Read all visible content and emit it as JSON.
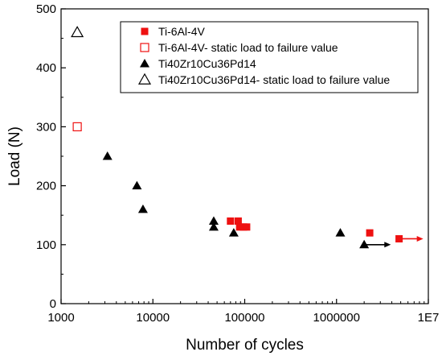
{
  "chart_data": {
    "type": "scatter",
    "title": "",
    "xlabel": "Number of cycles",
    "ylabel": "Load (N)",
    "x_scale": "log",
    "xlim": [
      1000,
      10000000
    ],
    "ylim": [
      0,
      500
    ],
    "x_ticks": [
      {
        "value": 1000,
        "label": "1000"
      },
      {
        "value": 10000,
        "label": "10000"
      },
      {
        "value": 100000,
        "label": "100000"
      },
      {
        "value": 1000000,
        "label": "1000000"
      },
      {
        "value": 10000000,
        "label": "1E7"
      }
    ],
    "y_ticks": [
      {
        "value": 0,
        "label": "0"
      },
      {
        "value": 100,
        "label": "100"
      },
      {
        "value": 200,
        "label": "200"
      },
      {
        "value": 300,
        "label": "300"
      },
      {
        "value": 400,
        "label": "400"
      },
      {
        "value": 500,
        "label": "500"
      }
    ],
    "grid": false,
    "legend_position": "top-right",
    "series": [
      {
        "name": "Ti-6Al-4V",
        "marker": "filled-square",
        "color": "#ee1111",
        "points": [
          {
            "x": 70000,
            "y": 140
          },
          {
            "x": 85000,
            "y": 140
          },
          {
            "x": 88000,
            "y": 130
          },
          {
            "x": 97000,
            "y": 130
          },
          {
            "x": 105000,
            "y": 130
          },
          {
            "x": 2300000,
            "y": 120
          },
          {
            "x": 4800000,
            "y": 110
          }
        ]
      },
      {
        "name": "Ti-6Al-4V- static load to failure value",
        "marker": "open-square",
        "color": "#ee1111",
        "points": [
          {
            "x": 1500,
            "y": 300
          }
        ]
      },
      {
        "name": "Ti40Zr10Cu36Pd14",
        "marker": "filled-triangle",
        "color": "#000000",
        "points": [
          {
            "x": 3200,
            "y": 250
          },
          {
            "x": 6700,
            "y": 200
          },
          {
            "x": 7800,
            "y": 160
          },
          {
            "x": 46000,
            "y": 140
          },
          {
            "x": 46000,
            "y": 130
          },
          {
            "x": 76000,
            "y": 120
          },
          {
            "x": 1100000,
            "y": 120
          },
          {
            "x": 2000000,
            "y": 100
          }
        ]
      },
      {
        "name": "Ti40Zr10Cu36Pd14- static load to failure value",
        "marker": "open-triangle",
        "color": "#000000",
        "points": [
          {
            "x": 1500,
            "y": 460
          }
        ]
      }
    ],
    "runout_arrows": [
      {
        "x_start": 2000000,
        "x_end": 3900000,
        "y": 100,
        "color": "#000000"
      },
      {
        "x_start": 4800000,
        "x_end": 8800000,
        "y": 110,
        "color": "#ee1111"
      }
    ]
  }
}
